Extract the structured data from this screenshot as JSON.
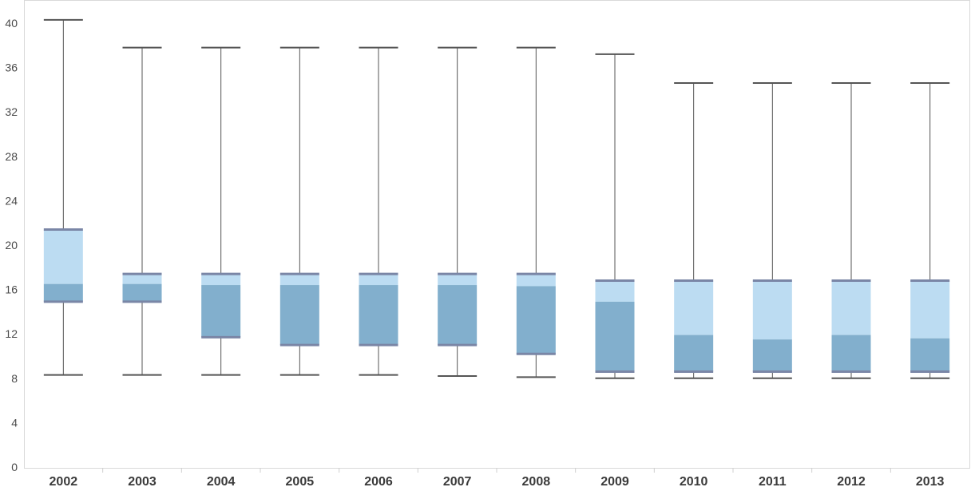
{
  "colors": {
    "upper_box": "#bcdcf2",
    "lower_box": "#82afcd",
    "hinge_line": "#7a86a6",
    "whisker": "#555555",
    "axis": "#cfcfcf"
  },
  "chart_data": {
    "type": "box",
    "title": "",
    "xlabel": "",
    "ylabel": "",
    "ylim": [
      0,
      40
    ],
    "yticks": [
      {
        "value": 0,
        "label": "0"
      },
      {
        "value": 4,
        "label": "4"
      },
      {
        "value": 8,
        "label": "8"
      },
      {
        "value": 12,
        "label": "12"
      },
      {
        "value": 16,
        "label": "16"
      },
      {
        "value": 20,
        "label": "20"
      },
      {
        "value": 24,
        "label": "24"
      },
      {
        "value": 28,
        "label": "28"
      },
      {
        "value": 32,
        "label": "32"
      },
      {
        "value": 36,
        "label": "36"
      },
      {
        "value": 40,
        "label": "40"
      }
    ],
    "grid": false,
    "categories": [
      "2002",
      "2003",
      "2004",
      "2005",
      "2006",
      "2007",
      "2008",
      "2009",
      "2010",
      "2011",
      "2012",
      "2013"
    ],
    "boxes": [
      {
        "category": "2002",
        "min": 8.3,
        "q1": 14.9,
        "median": 16.5,
        "q3": 21.4,
        "max": 40.3
      },
      {
        "category": "2003",
        "min": 8.3,
        "q1": 14.9,
        "median": 16.5,
        "q3": 17.4,
        "max": 37.8
      },
      {
        "category": "2004",
        "min": 8.3,
        "q1": 11.7,
        "median": 16.4,
        "q3": 17.4,
        "max": 37.8
      },
      {
        "category": "2005",
        "min": 8.3,
        "q1": 11.0,
        "median": 16.4,
        "q3": 17.4,
        "max": 37.8
      },
      {
        "category": "2006",
        "min": 8.3,
        "q1": 11.0,
        "median": 16.4,
        "q3": 17.4,
        "max": 37.8
      },
      {
        "category": "2007",
        "min": 8.2,
        "q1": 11.0,
        "median": 16.4,
        "q3": 17.4,
        "max": 37.8
      },
      {
        "category": "2008",
        "min": 8.1,
        "q1": 10.2,
        "median": 16.3,
        "q3": 17.4,
        "max": 37.8
      },
      {
        "category": "2009",
        "min": 8.0,
        "q1": 8.6,
        "median": 14.9,
        "q3": 16.8,
        "max": 37.2
      },
      {
        "category": "2010",
        "min": 8.0,
        "q1": 8.6,
        "median": 11.9,
        "q3": 16.8,
        "max": 34.6
      },
      {
        "category": "2011",
        "min": 8.0,
        "q1": 8.6,
        "median": 11.5,
        "q3": 16.8,
        "max": 34.6
      },
      {
        "category": "2012",
        "min": 8.0,
        "q1": 8.6,
        "median": 11.9,
        "q3": 16.8,
        "max": 34.6
      },
      {
        "category": "2013",
        "min": 8.0,
        "q1": 8.6,
        "median": 11.6,
        "q3": 16.8,
        "max": 34.6
      }
    ]
  }
}
